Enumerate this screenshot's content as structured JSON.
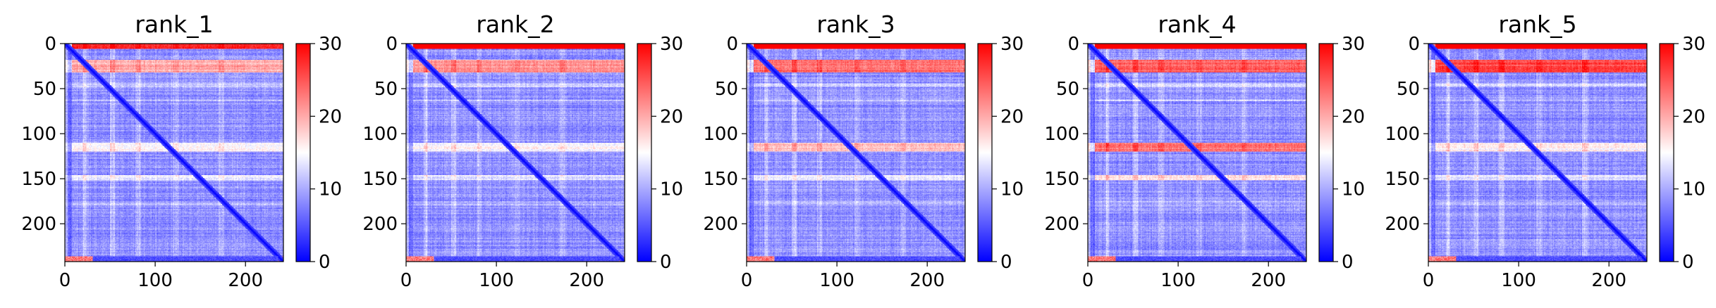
{
  "chart_data": [
    {
      "type": "heatmap",
      "title": "rank_1",
      "xticks": [
        "0",
        "100",
        "200"
      ],
      "yticks": [
        "0",
        "50",
        "100",
        "150",
        "200"
      ],
      "xlim": [
        0,
        242
      ],
      "ylim": [
        242,
        0
      ],
      "colorbar": {
        "ticks": [
          "0",
          "10",
          "20",
          "30"
        ],
        "range": [
          0,
          30
        ],
        "colormap": "bwr"
      },
      "variant": 1,
      "gradient": [
        "#0000ff",
        "#ffffff",
        "#ff0000"
      ]
    },
    {
      "type": "heatmap",
      "title": "rank_2",
      "xticks": [
        "0",
        "100",
        "200"
      ],
      "yticks": [
        "0",
        "50",
        "100",
        "150",
        "200"
      ],
      "xlim": [
        0,
        242
      ],
      "ylim": [
        242,
        0
      ],
      "colorbar": {
        "ticks": [
          "0",
          "10",
          "20",
          "30"
        ],
        "range": [
          0,
          30
        ],
        "colormap": "bwr"
      },
      "variant": 2,
      "gradient": [
        "#0000ff",
        "#ffffff",
        "#ff0000"
      ]
    },
    {
      "type": "heatmap",
      "title": "rank_3",
      "xticks": [
        "0",
        "100",
        "200"
      ],
      "yticks": [
        "0",
        "50",
        "100",
        "150",
        "200"
      ],
      "xlim": [
        0,
        242
      ],
      "ylim": [
        242,
        0
      ],
      "colorbar": {
        "ticks": [
          "0",
          "10",
          "20",
          "30"
        ],
        "range": [
          0,
          30
        ],
        "colormap": "bwr"
      },
      "variant": 3,
      "gradient": [
        "#0000ff",
        "#ffffff",
        "#ff0000"
      ]
    },
    {
      "type": "heatmap",
      "title": "rank_4",
      "xticks": [
        "0",
        "100",
        "200"
      ],
      "yticks": [
        "0",
        "50",
        "100",
        "150",
        "200"
      ],
      "xlim": [
        0,
        242
      ],
      "ylim": [
        242,
        0
      ],
      "colorbar": {
        "ticks": [
          "0",
          "10",
          "20",
          "30"
        ],
        "range": [
          0,
          30
        ],
        "colormap": "bwr"
      },
      "variant": 4,
      "gradient": [
        "#0000ff",
        "#ffffff",
        "#ff0000"
      ]
    },
    {
      "type": "heatmap",
      "title": "rank_5",
      "xticks": [
        "0",
        "100",
        "200"
      ],
      "yticks": [
        "0",
        "50",
        "100",
        "150",
        "200"
      ],
      "xlim": [
        0,
        242
      ],
      "ylim": [
        242,
        0
      ],
      "colorbar": {
        "ticks": [
          "0",
          "10",
          "20",
          "30"
        ],
        "range": [
          0,
          30
        ],
        "colormap": "bwr"
      },
      "variant": 5,
      "gradient": [
        "#0000ff",
        "#ffffff",
        "#ff0000"
      ]
    }
  ]
}
